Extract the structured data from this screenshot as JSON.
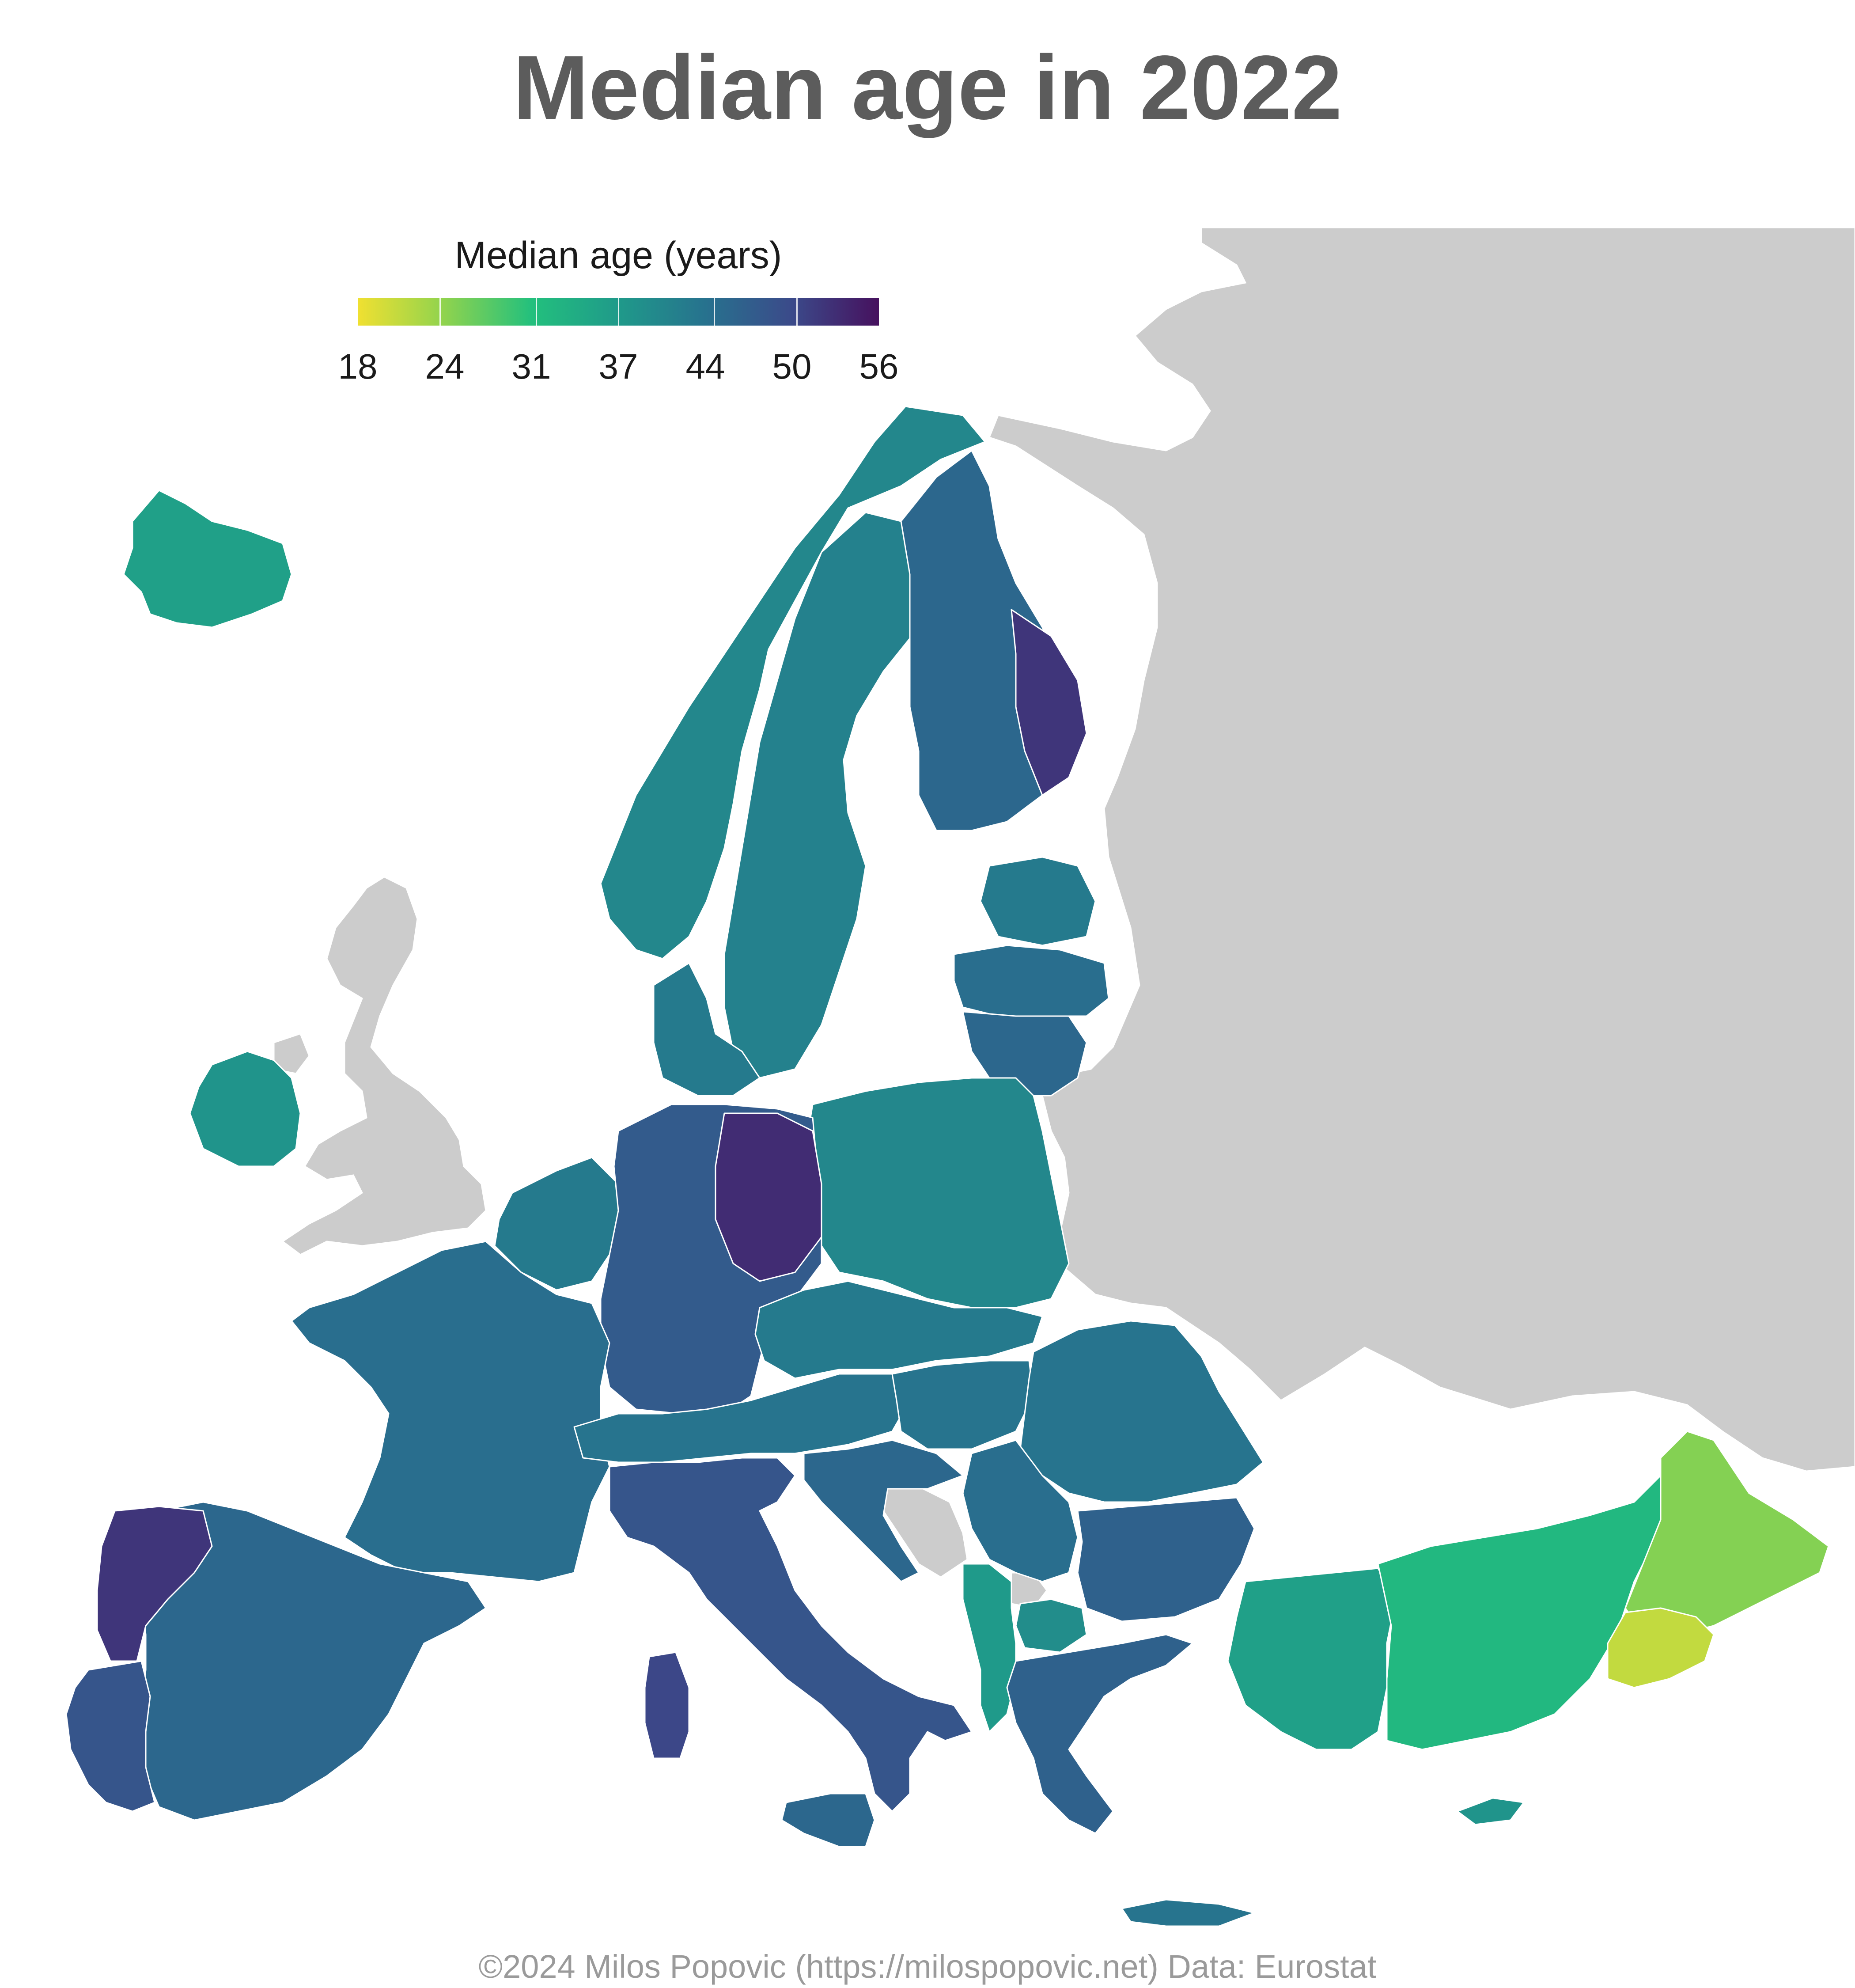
{
  "title": "Median age in 2022",
  "caption": "©2024 Milos Popovic (https://milospopovic.net) Data: Eurostat",
  "legend": {
    "title": "Median age (years)",
    "ticks": [
      "18",
      "24",
      "31",
      "37",
      "44",
      "50",
      "56"
    ],
    "colors": [
      "#f0e031",
      "#8fd34e",
      "#23c07d",
      "#1f9a8a",
      "#27728e",
      "#3b4a8a",
      "#46115e"
    ]
  },
  "colors": {
    "no_data": "#cccccc",
    "water": "#ffffff",
    "border": "#ffffff"
  },
  "regions": {
    "iceland": {
      "median_age": 36
    },
    "ireland": {
      "median_age": 38
    },
    "norway": {
      "median_age": 40
    },
    "sweden": {
      "median_age": 41
    },
    "finland": {
      "median_age": 45
    },
    "finland_east": {
      "median_age": 52
    },
    "estonia": {
      "median_age": 42
    },
    "latvia": {
      "median_age": 44
    },
    "lithuania": {
      "median_age": 45
    },
    "denmark": {
      "median_age": 42
    },
    "poland": {
      "median_age": 40
    },
    "germany": {
      "median_age": 47
    },
    "germany_east": {
      "median_age": 53
    },
    "netherlands_belgium": {
      "median_age": 42
    },
    "france": {
      "median_age": 44
    },
    "spain": {
      "median_age": 45
    },
    "portugal": {
      "median_age": 48
    },
    "galicia_north_portugal": {
      "median_age": 52
    },
    "italy": {
      "median_age": 48
    },
    "sardinia": {
      "median_age": 50
    },
    "sicily": {
      "median_age": 45
    },
    "switzerland_austria": {
      "median_age": 43
    },
    "czechia_slovakia": {
      "median_age": 42
    },
    "hungary": {
      "median_age": 43
    },
    "slovenia_croatia": {
      "median_age": 45
    },
    "romania": {
      "median_age": 43
    },
    "bulgaria": {
      "median_age": 46
    },
    "serbia": {
      "median_age": 44
    },
    "montenegro_albania": {
      "median_age": 37
    },
    "north_macedonia": {
      "median_age": 39
    },
    "greece": {
      "median_age": 46
    },
    "crete": {
      "median_age": 43
    },
    "cyprus": {
      "median_age": 38
    },
    "turkey_west": {
      "median_age": 36
    },
    "turkey_central": {
      "median_age": 32
    },
    "turkey_east": {
      "median_age": 25
    },
    "turkey_southeast": {
      "median_age": 21
    }
  },
  "no_data_areas": [
    "United Kingdom",
    "Russia",
    "Belarus",
    "Ukraine",
    "Moldova",
    "Bosnia and Herzegovina",
    "Kosovo",
    "Georgia",
    "Northern Ireland"
  ]
}
